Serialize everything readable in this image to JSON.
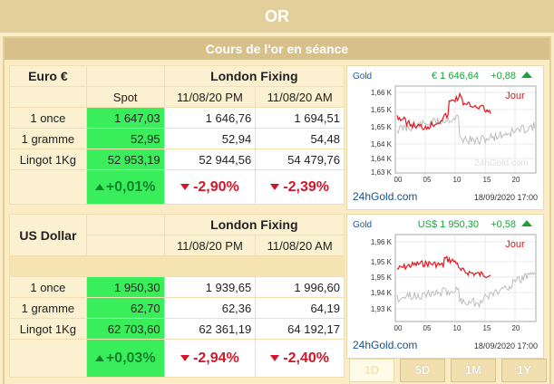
{
  "title": "OR",
  "subtitle": "Cours de l'or en séance",
  "euro": {
    "currency": "Euro €",
    "spot_label": "Spot",
    "fixing_label": "London Fixing",
    "date_pm": "11/08/20 PM",
    "date_am": "11/08/20 AM",
    "rows": [
      {
        "label": "1 once",
        "spot": "1 647,03",
        "pm": "1 646,76",
        "am": "1 694,51"
      },
      {
        "label": "1 gramme",
        "spot": "52,95",
        "pm": "52,94",
        "am": "54,48"
      },
      {
        "label": "Lingot 1Kg",
        "spot": "52 953,19",
        "pm": "52 944,56",
        "am": "54 479,76"
      }
    ],
    "var_spot": "+0,01%",
    "var_pm": "-2,90%",
    "var_am": "-2,39%"
  },
  "usd": {
    "currency": "US Dollar",
    "fixing_label": "London Fixing",
    "date_pm": "11/08/20 PM",
    "date_am": "11/08/20 AM",
    "rows": [
      {
        "label": "1 once",
        "spot": "1 950,30",
        "pm": "1 939,65",
        "am": "1 996,60"
      },
      {
        "label": "1 gramme",
        "spot": "62,70",
        "pm": "62,36",
        "am": "64,19"
      },
      {
        "label": "Lingot 1Kg",
        "spot": "62 703,60",
        "pm": "62 361,19",
        "am": "64 192,17"
      }
    ],
    "var_spot": "+0,03%",
    "var_pm": "-2,94%",
    "var_am": "-2,40%"
  },
  "charts": [
    {
      "name": "Gold",
      "price": "€ 1 646,64",
      "change": "+0,88",
      "period": "Jour",
      "site": "24hGold.com",
      "watermark": "24hGold.com",
      "date": "18/09/2020 17:00",
      "y_ticks": [
        "1,66 K",
        "1,65 K",
        "1,65 K",
        "1,64 K",
        "1,64 K",
        "1,63 K"
      ],
      "x_ticks": [
        "00",
        "05",
        "10",
        "15",
        "20"
      ],
      "colors": {
        "today": "#e8141c",
        "yesterday": "#bdbdbd"
      }
    },
    {
      "name": "Gold",
      "price": "US$ 1 950,30",
      "change": "+0,58",
      "period": "Jour",
      "site": "24hGold.com",
      "watermark": "24hGold.com",
      "date": "18/09/2020 17:00",
      "y_ticks": [
        "1,96 K",
        "1,95 K",
        "1,95 K",
        "1,94 K",
        "1,93 K"
      ],
      "x_ticks": [
        "00",
        "05",
        "10",
        "15",
        "20"
      ],
      "colors": {
        "today": "#e8141c",
        "yesterday": "#bdbdbd"
      }
    }
  ],
  "buttons": [
    "1D",
    "5D",
    "1M",
    "1Y"
  ],
  "active_button": "1D"
}
